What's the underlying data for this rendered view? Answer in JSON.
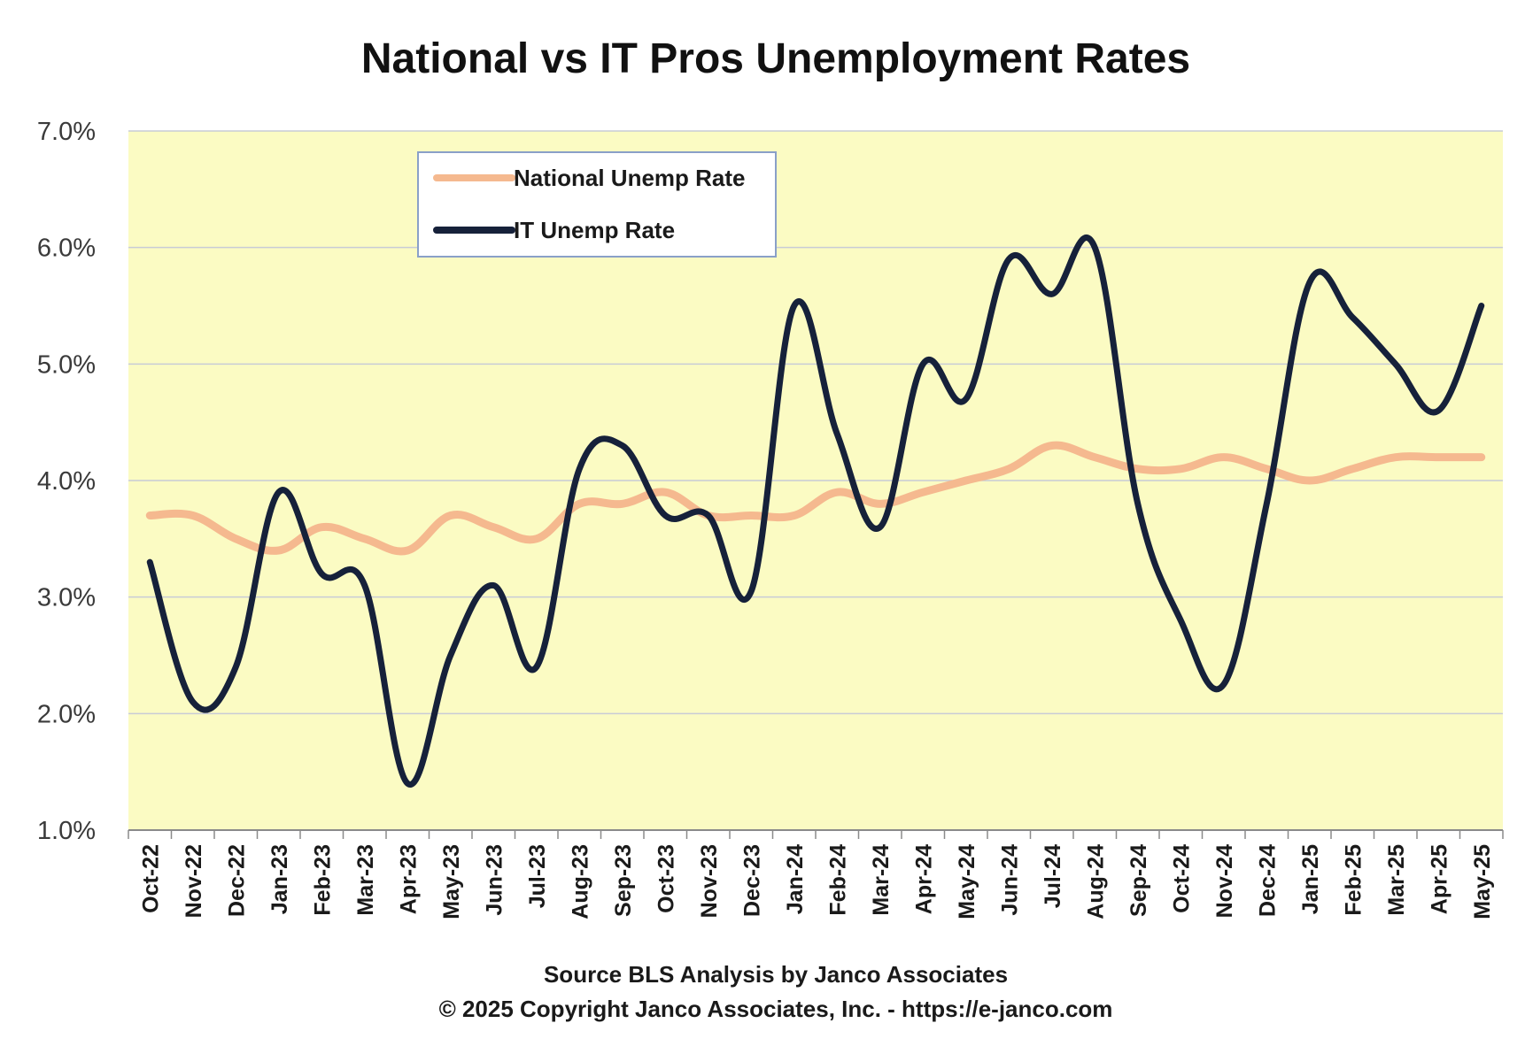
{
  "chart_data": {
    "type": "line",
    "title": "National vs IT Pros Unemployment Rates",
    "xlabel": "",
    "ylabel": "",
    "ylim": [
      1.0,
      7.0
    ],
    "yticks": [
      "1.0%",
      "2.0%",
      "3.0%",
      "4.0%",
      "5.0%",
      "6.0%",
      "7.0%"
    ],
    "categories": [
      "Oct-22",
      "Nov-22",
      "Dec-22",
      "Jan-23",
      "Feb-23",
      "Mar-23",
      "Apr-23",
      "May-23",
      "Jun-23",
      "Jul-23",
      "Aug-23",
      "Sep-23",
      "Oct-23",
      "Nov-23",
      "Dec-23",
      "Jan-24",
      "Feb-24",
      "Mar-24",
      "Apr-24",
      "May-24",
      "Jun-24",
      "Jul-24",
      "Aug-24",
      "Sep-24",
      "Oct-24",
      "Nov-24",
      "Dec-24",
      "Jan-25",
      "Feb-25",
      "Mar-25",
      "Apr-25",
      "May-25"
    ],
    "series": [
      {
        "name": "National Unemp Rate",
        "color": "#f5b98f",
        "values": [
          3.7,
          3.7,
          3.5,
          3.4,
          3.6,
          3.5,
          3.4,
          3.7,
          3.6,
          3.5,
          3.8,
          3.8,
          3.9,
          3.7,
          3.7,
          3.7,
          3.9,
          3.8,
          3.9,
          4.0,
          4.1,
          4.3,
          4.2,
          4.1,
          4.1,
          4.2,
          4.1,
          4.0,
          4.1,
          4.2,
          4.2,
          4.2
        ]
      },
      {
        "name": "IT Unemp Rate",
        "color": "#16213a",
        "values": [
          3.3,
          2.1,
          2.4,
          3.9,
          3.2,
          3.1,
          1.4,
          2.5,
          3.1,
          2.4,
          4.1,
          4.3,
          3.7,
          3.7,
          3.05,
          5.5,
          4.4,
          3.6,
          5.0,
          4.7,
          5.9,
          5.6,
          6.0,
          3.8,
          2.8,
          2.25,
          3.8,
          5.7,
          5.4,
          5.0,
          4.6,
          5.5
        ]
      }
    ],
    "legend_position": "top-left",
    "grid": true,
    "background": "#fbfbc3",
    "footer": {
      "line1": "Source BLS Analysis by Janco Associates",
      "line2": "© 2025 Copyright Janco Associates, Inc. - https://e-janco.com"
    }
  }
}
